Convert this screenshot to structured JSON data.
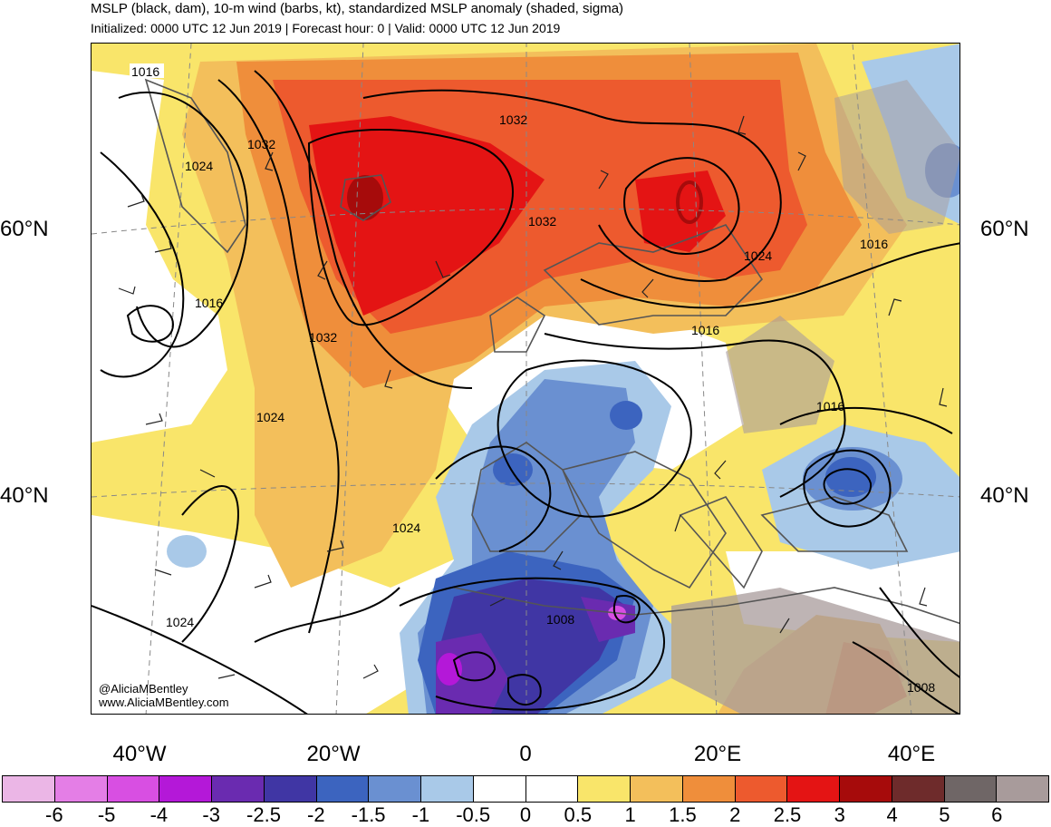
{
  "header": {
    "title": "MSLP (black, dam), 10-m wind (barbs, kt), standardized MSLP anomaly (shaded, sigma)",
    "subtitle": "Initialized: 0000 UTC 12 Jun 2019 | Forecast hour: 0 | Valid: 0000 UTC 12 Jun 2019"
  },
  "map": {
    "lat_labels": [
      "60°N",
      "40°N"
    ],
    "lon_labels": [
      "40°W",
      "20°W",
      "0",
      "20°E",
      "40°E"
    ],
    "contour_labels": [
      "1016",
      "1032",
      "1024",
      "1016",
      "1032",
      "1024",
      "1032",
      "1032",
      "1024",
      "1016",
      "1016",
      "1016",
      "1024",
      "1024",
      "1008",
      "1008"
    ],
    "colors": {
      "land_outline": "#555555",
      "contour": "#000000",
      "gridline": "#888888"
    }
  },
  "credits": {
    "handle": "@AliciaMBentley",
    "website": "www.AliciaMBentley.com"
  },
  "colorbar": {
    "colors": [
      "#ebb6e6",
      "#e47ee6",
      "#d84fe2",
      "#b418d8",
      "#6a2bb0",
      "#4036a4",
      "#3c64bf",
      "#6a90d1",
      "#a9c9e8",
      "#ffffff",
      "#ffffff",
      "#f9e56a",
      "#f3bf5b",
      "#ef8e3b",
      "#ed5a2e",
      "#e41414",
      "#a60b0b",
      "#6e2b2b",
      "#6f6666",
      "#a89b9b"
    ],
    "ticks": [
      "-6",
      "-5",
      "-4",
      "-3",
      "-2.5",
      "-2",
      "-1.5",
      "-1",
      "-0.5",
      "0",
      "0.5",
      "1",
      "1.5",
      "2",
      "2.5",
      "3",
      "4",
      "5",
      "6"
    ]
  }
}
